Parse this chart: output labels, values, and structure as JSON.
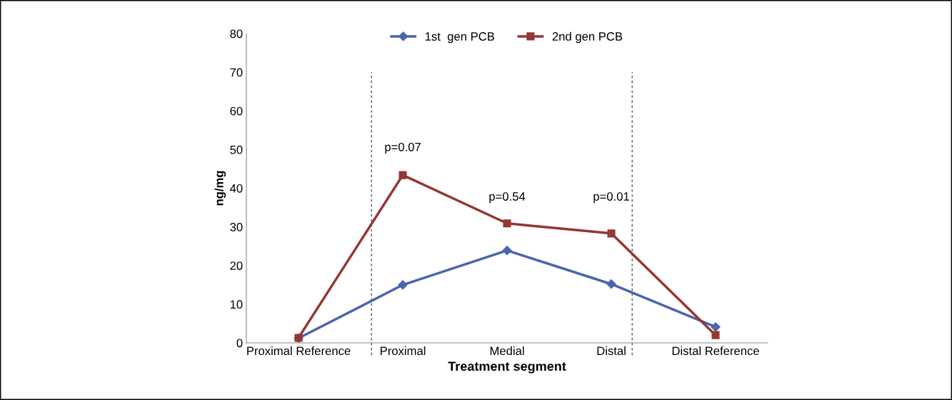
{
  "chart_data": {
    "type": "line",
    "xlabel": "Treatment segment",
    "ylabel": "ng/mg",
    "categories": [
      "Proximal Reference",
      "Proximal",
      "Medial",
      "Distal",
      "Distal Reference"
    ],
    "series": [
      {
        "name": "1st  gen PCB",
        "color": "#4a66ac",
        "marker": "diamond",
        "values": [
          1.2,
          15.0,
          23.9,
          15.2,
          4.1
        ]
      },
      {
        "name": "2nd gen PCB",
        "color": "#943634",
        "marker": "square",
        "values": [
          1.3,
          43.4,
          30.9,
          28.3,
          2.0
        ]
      }
    ],
    "ylim": [
      0,
      80
    ],
    "yticks": [
      0,
      10,
      20,
      30,
      40,
      50,
      60,
      70,
      80
    ],
    "grid": false,
    "legend": "top",
    "line_style": "solid",
    "annotations": [
      "p=0.07",
      "p=0.54",
      "p=0.01"
    ]
  }
}
